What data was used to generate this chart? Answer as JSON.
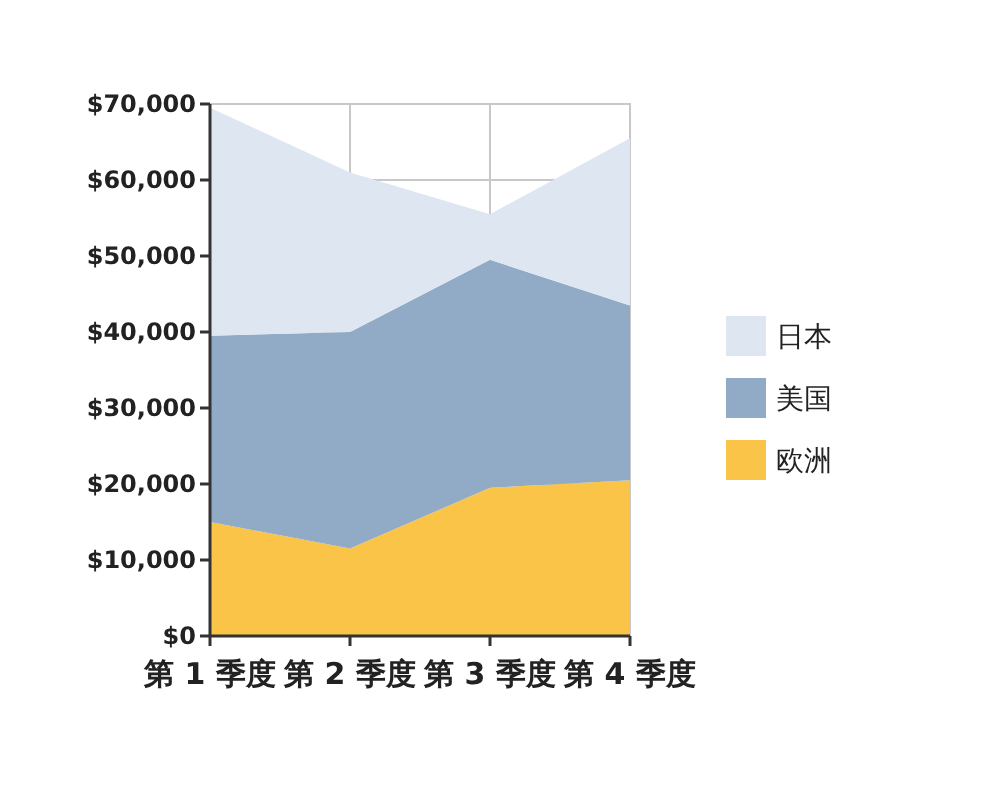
{
  "chart_data": {
    "type": "area",
    "stacked": true,
    "categories": [
      "第 1 季度",
      "第 2 季度",
      "第 3 季度",
      "第 4 季度"
    ],
    "series": [
      {
        "name": "欧洲",
        "color": "#f9c448",
        "values": [
          15000,
          11500,
          19500,
          20500
        ]
      },
      {
        "name": "美国",
        "color": "#91aac6",
        "values": [
          24500,
          28500,
          30000,
          23000
        ]
      },
      {
        "name": "日本",
        "color": "#dde6f1",
        "values": [
          30000,
          21000,
          6000,
          22000
        ]
      }
    ],
    "ylim": [
      0,
      70000
    ],
    "yticks": [
      {
        "value": 0,
        "label": "$0"
      },
      {
        "value": 10000,
        "label": "$10,000"
      },
      {
        "value": 20000,
        "label": "$20,000"
      },
      {
        "value": 30000,
        "label": "$30,000"
      },
      {
        "value": 40000,
        "label": "$40,000"
      },
      {
        "value": 50000,
        "label": "$50,000"
      },
      {
        "value": 60000,
        "label": "$60,000"
      },
      {
        "value": 70000,
        "label": "$70,000"
      }
    ],
    "grid": true,
    "legend": "right"
  }
}
